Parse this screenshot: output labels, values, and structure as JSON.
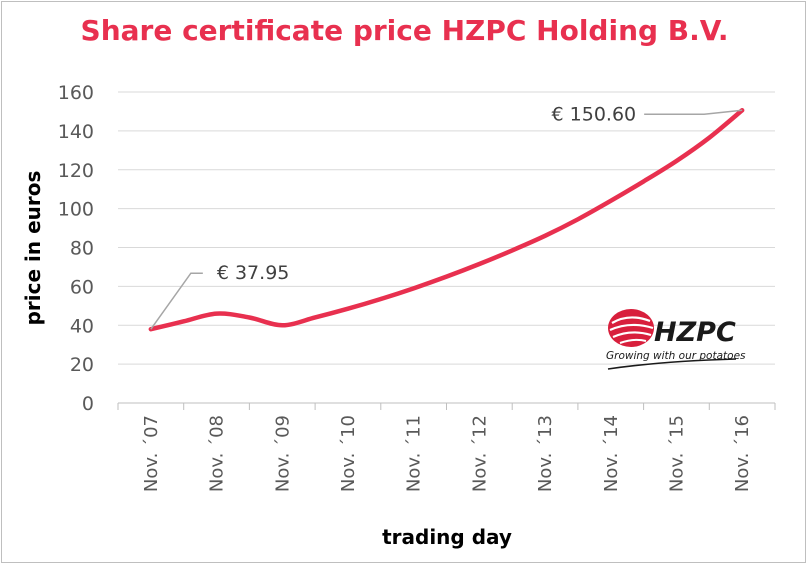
{
  "chart_data": {
    "type": "line",
    "title": "Share certificate price HZPC Holding B.V.",
    "xlabel": "trading day",
    "ylabel": "price in euros",
    "ylim": [
      0,
      160
    ],
    "yticks": [
      0,
      20,
      40,
      60,
      80,
      100,
      120,
      140,
      160
    ],
    "grid": true,
    "categories": [
      "Nov. ´07",
      "Nov. ´08",
      "Nov. ´09",
      "Nov. ´10",
      "Nov. ´11",
      "Nov. ´12",
      "Nov. ´13",
      "Nov. ´14",
      "Nov. ´15",
      "Nov. ´16"
    ],
    "series": [
      {
        "color": "#e8304f",
        "points": [
          {
            "x": 0,
            "y": 37.95
          },
          {
            "x": 0.5,
            "y": 42
          },
          {
            "x": 1,
            "y": 46
          },
          {
            "x": 1.5,
            "y": 44
          },
          {
            "x": 2,
            "y": 40
          },
          {
            "x": 2.5,
            "y": 44
          },
          {
            "x": 3,
            "y": 48.5
          },
          {
            "x": 3.5,
            "y": 53.5
          },
          {
            "x": 4,
            "y": 59
          },
          {
            "x": 4.5,
            "y": 65
          },
          {
            "x": 5,
            "y": 71.5
          },
          {
            "x": 5.5,
            "y": 78.5
          },
          {
            "x": 6,
            "y": 86
          },
          {
            "x": 6.5,
            "y": 94.5
          },
          {
            "x": 7,
            "y": 104
          },
          {
            "x": 7.5,
            "y": 114
          },
          {
            "x": 8,
            "y": 124.5
          },
          {
            "x": 8.5,
            "y": 136.5
          },
          {
            "x": 9,
            "y": 150.6
          }
        ]
      }
    ],
    "annotations": [
      {
        "text": "€ 37.95",
        "x": 0,
        "y": 37.95
      },
      {
        "text": "€ 150.60",
        "x": 9,
        "y": 150.6
      }
    ]
  },
  "logo": {
    "name": "HZPC",
    "tagline": "Growing with our potatoes"
  }
}
